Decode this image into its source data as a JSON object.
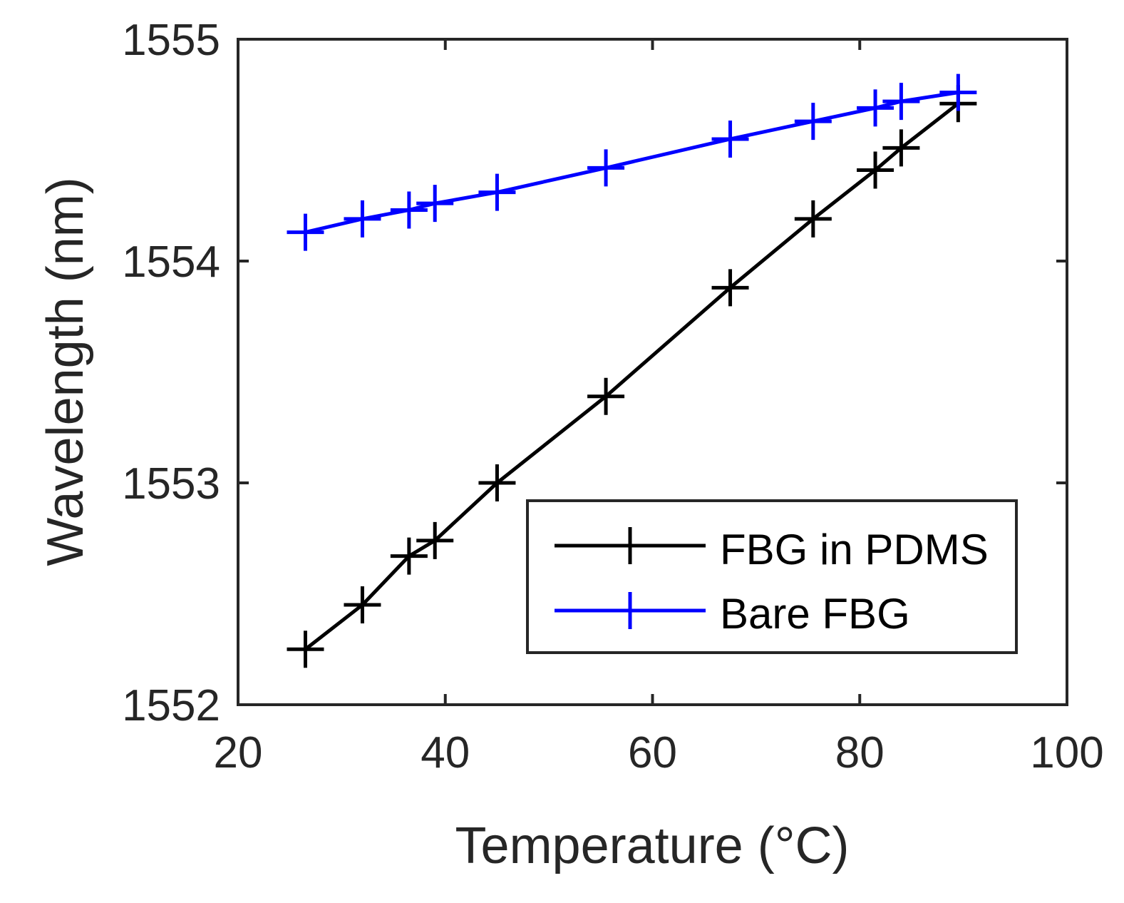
{
  "chart_data": {
    "type": "line",
    "title": "",
    "xlabel": "Temperature (°C)",
    "ylabel": "Wavelength (nm)",
    "xlim": [
      20,
      100
    ],
    "ylim": [
      1552,
      1555
    ],
    "xticks": [
      20,
      40,
      60,
      80,
      100
    ],
    "yticks": [
      1552,
      1553,
      1554,
      1555
    ],
    "xtick_labels": [
      "20",
      "40",
      "60",
      "80",
      "100"
    ],
    "ytick_labels": [
      "1552",
      "1553",
      "1554",
      "1555"
    ],
    "grid": false,
    "legend_position": "bottom-right",
    "series": [
      {
        "name": "FBG in PDMS",
        "color": "#000000",
        "marker": "plus",
        "x": [
          26.5,
          32,
          36.5,
          39,
          45,
          55.5,
          67.5,
          75.5,
          81.5,
          84,
          89.5
        ],
        "y": [
          1552.25,
          1552.45,
          1552.67,
          1552.74,
          1553.0,
          1553.39,
          1553.88,
          1554.19,
          1554.41,
          1554.51,
          1554.71
        ]
      },
      {
        "name": "Bare FBG",
        "color": "#0000ff",
        "marker": "plus",
        "x": [
          26.5,
          32,
          36.5,
          39,
          45,
          55.5,
          67.5,
          75.5,
          81.5,
          84,
          89.5
        ],
        "y": [
          1554.13,
          1554.19,
          1554.23,
          1554.26,
          1554.31,
          1554.42,
          1554.55,
          1554.63,
          1554.69,
          1554.72,
          1554.76
        ]
      }
    ]
  }
}
